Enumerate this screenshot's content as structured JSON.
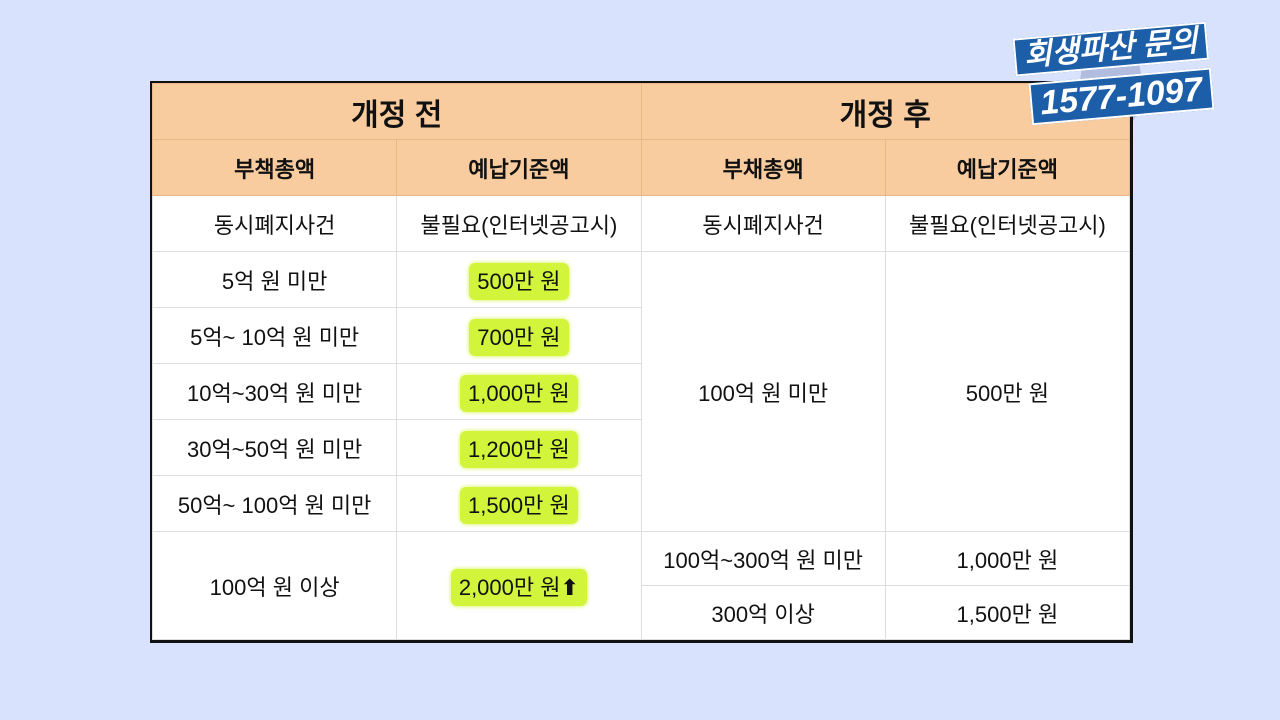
{
  "badge": {
    "line1": "회생파산 문의",
    "line2": "1577-1097",
    "color": "#1d5ea8"
  },
  "table": {
    "before_title": "개정 전",
    "after_title": "개정 후",
    "headers": [
      "부책총액",
      "예납기준액",
      "부채총액",
      "예납기준액"
    ],
    "row0": [
      "동시폐지사건",
      "불필요(인터넷공고시)",
      "동시폐지사건",
      "불필요(인터넷공고시)"
    ],
    "before_rows": [
      [
        "5억 원 미만",
        "500만 원"
      ],
      [
        "5억~ 10억 원 미만",
        "700만 원"
      ],
      [
        "10억~30억 원 미만",
        "1,000만 원"
      ],
      [
        "30억~50억 원 미만",
        "1,200만 원"
      ],
      [
        "50억~ 100억 원 미만",
        "1,500만 원"
      ],
      [
        "100억 원 이상",
        "2,000만 원"
      ]
    ],
    "after_rows": [
      [
        "100억 원 미만",
        "500만 원"
      ],
      [
        "100억~300억 원 미만",
        "1,000만 원"
      ],
      [
        "300억 이상",
        "1,500만 원"
      ]
    ],
    "up_arrow": "⬆",
    "header_color": "#f8cc9f",
    "highlight_color": "#d2f53c"
  }
}
